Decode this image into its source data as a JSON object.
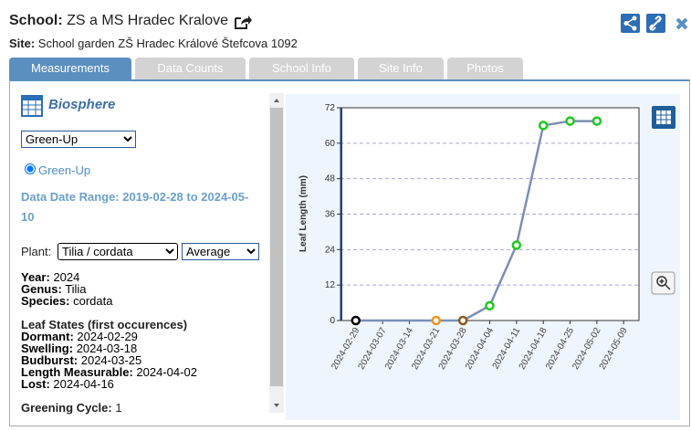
{
  "header": {
    "school_label": "School:",
    "school_name": "ZS a MS Hradec Kralove",
    "site_label": "Site:",
    "site_name": "School garden ZŠ Hradec Králové Štefcova 1092"
  },
  "tabs": [
    "Measurements",
    "Data Counts",
    "School Info",
    "Site Info",
    "Photos"
  ],
  "panel": {
    "title": "Biosphere",
    "phenophase_select": "Green-Up",
    "radio": "Green-Up",
    "date_range_label": "Data Date Range:",
    "date_range": "2019-02-28 to 2024-05-10",
    "plant_label": "Plant:",
    "plant_select": "Tilia / cordata",
    "stat_select": "Average",
    "details": [
      {
        "label": "Year:",
        "value": "2024"
      },
      {
        "label": "Genus:",
        "value": "Tilia"
      },
      {
        "label": "Species:",
        "value": "cordata"
      }
    ],
    "leaf_states_title": "Leaf States (first occurences)",
    "leaf_states": [
      {
        "label": "Dormant:",
        "value": "2024-02-29"
      },
      {
        "label": "Swelling:",
        "value": "2024-03-18"
      },
      {
        "label": "Budburst:",
        "value": "2024-03-25"
      },
      {
        "label": "Length Measurable:",
        "value": "2024-04-02"
      },
      {
        "label": "Lost:",
        "value": "2024-04-16"
      }
    ],
    "cycle_label": "Greening Cycle:",
    "cycle_value": "1"
  },
  "chart_data": {
    "type": "line",
    "y_label": "Leaf Length (mm)",
    "x": [
      "2024-02-29",
      "2024-03-21",
      "2024-03-28",
      "2024-04-04",
      "2024-04-11",
      "2024-04-18",
      "2024-04-25",
      "2024-05-02"
    ],
    "series": [
      {
        "color": "#7b8fb5",
        "values": [
          0,
          0,
          0,
          5,
          25.5,
          66,
          67.5,
          67.5
        ],
        "point_colors": [
          "#000000",
          "#f0961e",
          "#8b5a1e",
          "#1ec81e",
          "#1ec81e",
          "#1ec81e",
          "#1ec81e",
          "#1ec81e"
        ]
      }
    ],
    "xlim": [
      "2024-02-25",
      "2024-05-13"
    ],
    "xticks": [
      "2024-02-29",
      "2024-03-07",
      "2024-03-14",
      "2024-03-21",
      "2024-03-28",
      "2024-04-04",
      "2024-04-11",
      "2024-04-18",
      "2024-04-25",
      "2024-05-02",
      "2024-05-09"
    ],
    "ylim": [
      0,
      72
    ],
    "yticks": [
      0,
      12,
      24,
      36,
      48,
      60,
      72
    ],
    "grid": true
  }
}
